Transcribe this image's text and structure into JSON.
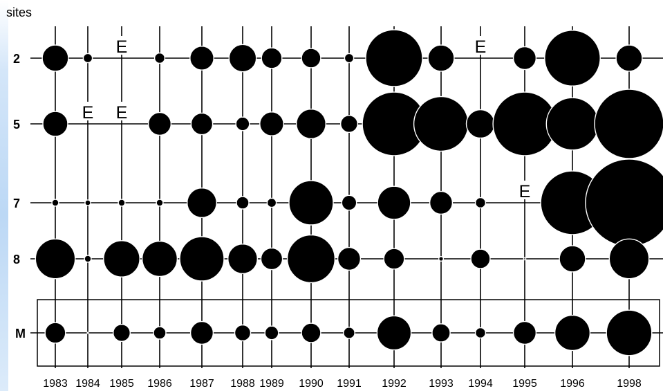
{
  "chart_data": {
    "type": "bubble-grid",
    "ylabel": "sites",
    "years": [
      "1983",
      "1984",
      "1985",
      "1986",
      "1987",
      "1988",
      "1989",
      "1990",
      "1991",
      "1992",
      "1993",
      "1994",
      "1995",
      "1996",
      "1998"
    ],
    "rows": [
      {
        "site": "2",
        "sizes": [
          2.3,
          0.8,
          0,
          0.9,
          2.1,
          2.4,
          1.8,
          1.7,
          0.8,
          5.0,
          2.3,
          0,
          2.0,
          4.9,
          2.3
        ],
        "empty": [
          2,
          11
        ]
      },
      {
        "site": "5",
        "sizes": [
          2.2,
          0,
          0,
          2.0,
          1.9,
          1.2,
          2.1,
          2.6,
          1.5,
          5.6,
          4.8,
          2.5,
          5.6,
          4.6,
          6.1
        ],
        "empty": [
          1,
          2
        ]
      },
      {
        "site": "7",
        "sizes": [
          0.6,
          0.5,
          0.6,
          0.6,
          2.6,
          1.1,
          0.8,
          3.9,
          1.3,
          2.9,
          2.0,
          0.9,
          0,
          5.6,
          7.7
        ],
        "empty": [
          12
        ]
      },
      {
        "site": "8",
        "sizes": [
          3.5,
          0.6,
          3.2,
          3.1,
          3.9,
          2.6,
          1.9,
          4.2,
          2.0,
          1.8,
          0.4,
          1.7,
          0.2,
          2.3,
          3.5
        ],
        "empty": []
      },
      {
        "site": "M",
        "sizes": [
          1.8,
          0.1,
          1.5,
          1.1,
          2.0,
          1.4,
          1.2,
          1.7,
          1.0,
          3.0,
          1.6,
          0.9,
          2.0,
          3.1,
          4.0
        ],
        "empty": []
      }
    ],
    "empty_marker": "E",
    "highlight_box_row": "M",
    "grid": "lines through every site and year"
  }
}
